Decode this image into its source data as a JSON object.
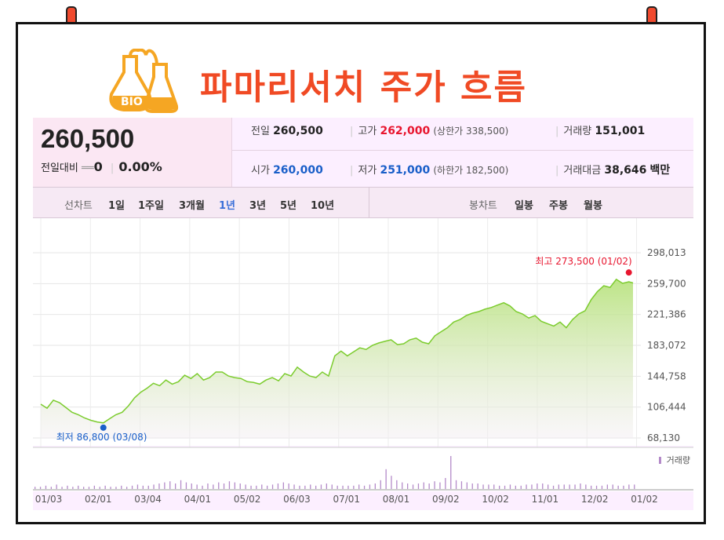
{
  "title": "파마리서치 주가 흐름",
  "logo": {
    "text": "BIO",
    "accent": "#f5a623"
  },
  "quote": {
    "price": "260,500",
    "change_label": "전일대비",
    "change_value": "0",
    "change_pct": "0.00%",
    "prev_label": "전일",
    "prev": "260,500",
    "high_label": "고가",
    "high": "262,000",
    "upper_limit": "(상한가 338,500)",
    "volume_label": "거래량",
    "volume": "151,001",
    "open_label": "시가",
    "open": "260,000",
    "low_label": "저가",
    "low": "251,000",
    "lower_limit": "(하한가 182,500)",
    "amount_label": "거래대금",
    "amount": "38,646",
    "amount_unit": "백만"
  },
  "tabs": {
    "line_label": "선차트",
    "line_periods": [
      "1일",
      "1주일",
      "3개월",
      "1년",
      "3년",
      "5년",
      "10년"
    ],
    "active_period": "1년",
    "candle_label": "봉차트",
    "candle_periods": [
      "일봉",
      "주봉",
      "월봉"
    ]
  },
  "chart_data": {
    "type": "area",
    "x_ticks": [
      "01/03",
      "02/01",
      "03/04",
      "04/01",
      "05/02",
      "06/03",
      "07/01",
      "08/01",
      "09/02",
      "10/02",
      "11/01",
      "12/02",
      "01/02"
    ],
    "y_ticks": [
      "298,013",
      "259,700",
      "221,386",
      "183,072",
      "144,758",
      "106,444",
      "68,130"
    ],
    "ylim": [
      68130,
      298013
    ],
    "series": [
      {
        "values": [
          [
            0,
            110000
          ],
          [
            0.3,
            105000
          ],
          [
            0.6,
            115000
          ],
          [
            0.9,
            112000
          ],
          [
            1.2,
            106000
          ],
          [
            1.5,
            100000
          ],
          [
            1.8,
            97000
          ],
          [
            2.1,
            93000
          ],
          [
            2.4,
            90000
          ],
          [
            2.7,
            88000
          ],
          [
            3.0,
            86800
          ],
          [
            3.3,
            92000
          ],
          [
            3.6,
            97000
          ],
          [
            3.9,
            100000
          ],
          [
            4.2,
            108000
          ],
          [
            4.5,
            118000
          ],
          [
            4.8,
            125000
          ],
          [
            5.1,
            130000
          ],
          [
            5.4,
            136000
          ],
          [
            5.7,
            133000
          ],
          [
            6.0,
            140000
          ],
          [
            6.3,
            135000
          ],
          [
            6.6,
            138000
          ],
          [
            6.9,
            146000
          ],
          [
            7.2,
            142000
          ],
          [
            7.5,
            148000
          ],
          [
            7.8,
            140000
          ],
          [
            8.1,
            143000
          ],
          [
            8.4,
            150000
          ],
          [
            8.7,
            150000
          ],
          [
            9.0,
            145000
          ],
          [
            9.3,
            143000
          ],
          [
            9.6,
            142000
          ],
          [
            9.9,
            138000
          ],
          [
            10.2,
            137000
          ],
          [
            10.5,
            135000
          ],
          [
            10.8,
            140000
          ],
          [
            11.1,
            143000
          ],
          [
            11.4,
            139000
          ],
          [
            11.7,
            148000
          ],
          [
            12.0,
            145000
          ],
          [
            12.3,
            156000
          ],
          [
            12.6,
            150000
          ],
          [
            12.9,
            145000
          ],
          [
            13.2,
            143000
          ],
          [
            13.5,
            150000
          ],
          [
            13.8,
            145000
          ],
          [
            14.1,
            170000
          ],
          [
            14.4,
            176000
          ],
          [
            14.7,
            170000
          ],
          [
            15.0,
            175000
          ],
          [
            15.3,
            180000
          ],
          [
            15.6,
            178000
          ],
          [
            15.9,
            183000
          ],
          [
            16.2,
            186000
          ],
          [
            16.5,
            188000
          ],
          [
            16.8,
            190000
          ],
          [
            17.1,
            184000
          ],
          [
            17.4,
            185000
          ],
          [
            17.7,
            190000
          ],
          [
            18.0,
            192000
          ],
          [
            18.3,
            187000
          ],
          [
            18.6,
            185000
          ],
          [
            18.9,
            195000
          ],
          [
            19.2,
            200000
          ],
          [
            19.5,
            205000
          ],
          [
            19.8,
            212000
          ],
          [
            20.1,
            215000
          ],
          [
            20.4,
            220000
          ],
          [
            20.7,
            223000
          ],
          [
            21.0,
            225000
          ],
          [
            21.3,
            228000
          ],
          [
            21.6,
            230000
          ],
          [
            21.9,
            233000
          ],
          [
            22.2,
            236000
          ],
          [
            22.5,
            232000
          ],
          [
            22.8,
            225000
          ],
          [
            23.1,
            222000
          ],
          [
            23.4,
            217000
          ],
          [
            23.7,
            220000
          ],
          [
            24.0,
            213000
          ],
          [
            24.3,
            210000
          ],
          [
            24.6,
            207000
          ],
          [
            24.9,
            212000
          ],
          [
            25.2,
            205000
          ],
          [
            25.5,
            215000
          ],
          [
            25.8,
            222000
          ],
          [
            26.1,
            226000
          ],
          [
            26.4,
            240000
          ],
          [
            26.7,
            250000
          ],
          [
            27.0,
            257000
          ],
          [
            27.3,
            255000
          ],
          [
            27.6,
            265000
          ],
          [
            27.9,
            260000
          ],
          [
            28.2,
            262000
          ],
          [
            28.4,
            260500
          ]
        ]
      }
    ],
    "high_annotation": {
      "label": "최고",
      "value": "273,500",
      "date": "(01/02)",
      "color": "#e8162f"
    },
    "low_annotation": {
      "label": "최저",
      "value": "86,800",
      "date": "(03/08)",
      "color": "#1a5fc9"
    },
    "volume_label": "거래량",
    "volume": [
      2,
      2,
      3,
      2,
      4,
      2,
      3,
      2,
      3,
      2,
      2,
      3,
      2,
      3,
      2,
      2,
      3,
      2,
      3,
      4,
      3,
      3,
      4,
      5,
      6,
      7,
      5,
      8,
      6,
      5,
      4,
      3,
      5,
      4,
      6,
      5,
      7,
      6,
      5,
      4,
      3,
      3,
      4,
      3,
      4,
      5,
      6,
      5,
      4,
      3,
      3,
      4,
      3,
      4,
      5,
      4,
      3,
      3,
      3,
      3,
      4,
      3,
      4,
      5,
      8,
      18,
      12,
      8,
      6,
      5,
      4,
      5,
      6,
      5,
      7,
      6,
      10,
      30,
      8,
      7,
      6,
      5,
      5,
      4,
      4,
      4,
      3,
      3,
      4,
      3,
      3,
      4,
      4,
      5,
      5,
      4,
      3,
      4,
      4,
      4,
      4,
      5,
      4,
      3,
      3,
      3,
      4,
      4,
      3,
      3,
      4,
      4
    ],
    "colors": {
      "line": "#7ccc2e",
      "fill": "#c8ea9a",
      "volume": "#b48ac9"
    }
  }
}
